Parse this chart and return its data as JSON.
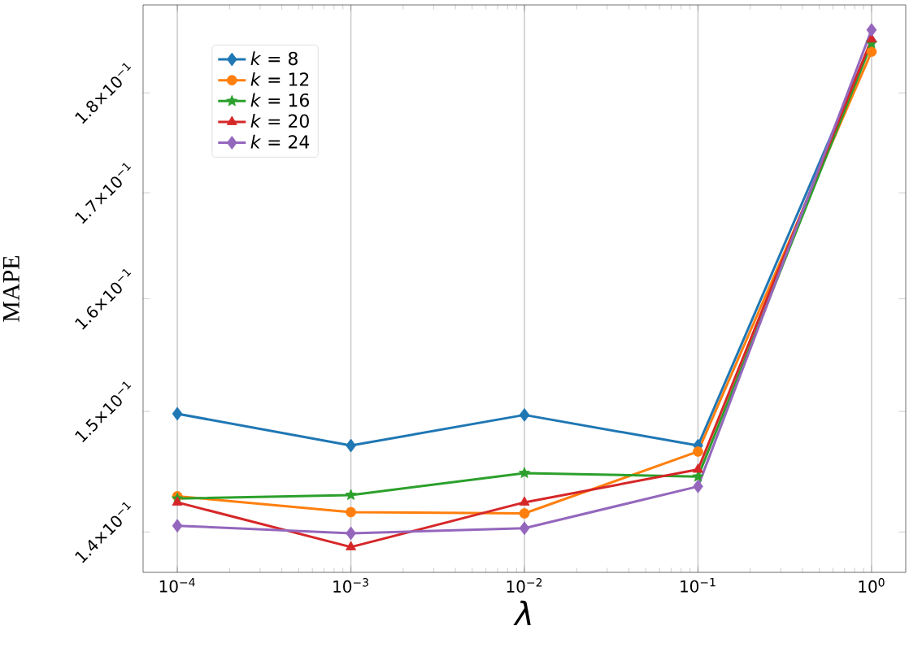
{
  "chart_data": {
    "type": "line",
    "xlabel": "λ",
    "ylabel": "MAPE",
    "x": [
      0.0001,
      0.001,
      0.01,
      0.1,
      1
    ],
    "series": [
      {
        "name": "*k* = 8",
        "color": "#1f77b4",
        "marker": "diamond",
        "values": [
          0.1498,
          0.1471,
          0.1497,
          0.1471,
          0.1854
        ]
      },
      {
        "name": "*k* = 12",
        "color": "#ff7f0e",
        "marker": "circle",
        "values": [
          0.1429,
          0.1416,
          0.1415,
          0.1466,
          0.1843
        ]
      },
      {
        "name": "*k* = 16",
        "color": "#2ca02c",
        "marker": "star",
        "values": [
          0.1427,
          0.143,
          0.1448,
          0.1445,
          0.1852
        ]
      },
      {
        "name": "*k* = 20",
        "color": "#d62728",
        "marker": "triangle",
        "values": [
          0.1424,
          0.1388,
          0.1424,
          0.1451,
          0.1856
        ]
      },
      {
        "name": "*k* = 24",
        "color": "#9467bd",
        "marker": "diamond",
        "values": [
          0.1405,
          0.1399,
          0.1403,
          0.1437,
          0.1866
        ]
      }
    ],
    "log": "xy",
    "xlim": [
      6.35e-05,
      1.574
    ],
    "ylim": [
      0.1368,
      0.1893
    ],
    "xticks": [
      {
        "value": 0.0001,
        "label": "10$^{−4}$"
      },
      {
        "value": 0.001,
        "label": "10$^{−3}$"
      },
      {
        "value": 0.01,
        "label": "10$^{−2}$"
      },
      {
        "value": 0.1,
        "label": "10$^{−1}$"
      },
      {
        "value": 1,
        "label": "10$^{0}$"
      }
    ],
    "yticks": [
      {
        "value": 0.14,
        "label": "1.4×10$^{−1}$"
      },
      {
        "value": 0.15,
        "label": "1.5×10$^{−1}$"
      },
      {
        "value": 0.16,
        "label": "1.6×10$^{−1}$"
      },
      {
        "value": 0.17,
        "label": "1.7×10$^{−1}$"
      },
      {
        "value": 0.18,
        "label": "1.8×10$^{−1}$"
      }
    ],
    "grid": "x",
    "legend": "top left",
    "line_style": "solid"
  }
}
